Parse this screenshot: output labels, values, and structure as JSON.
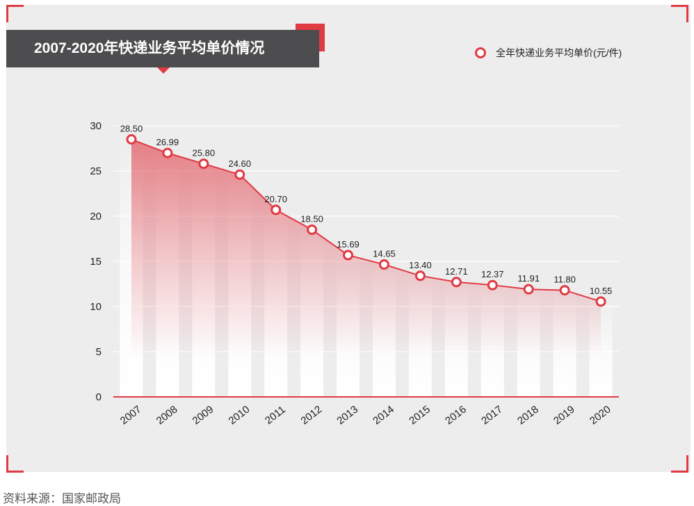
{
  "colors": {
    "accent": "#e03a43",
    "title_bg": "#4d4d4f",
    "panel_bg": "#ededee"
  },
  "source": "资料来源：国家邮政局",
  "chart_data": {
    "type": "area",
    "title": "2007-2020年快递业务平均单价情况",
    "legend": {
      "label": "全年快递业务平均单价(元/件)",
      "position": "top-right"
    },
    "categories": [
      "2007",
      "2008",
      "2009",
      "2010",
      "2011",
      "2012",
      "2013",
      "2014",
      "2015",
      "2016",
      "2017",
      "2018",
      "2019",
      "2020"
    ],
    "series": [
      {
        "name": "全年快递业务平均单价(元/件)",
        "values": [
          28.5,
          26.99,
          25.8,
          24.6,
          20.7,
          18.5,
          15.69,
          14.65,
          13.4,
          12.71,
          12.37,
          11.91,
          11.8,
          10.55
        ]
      }
    ],
    "value_labels": [
      "28.50",
      "26.99",
      "25.80",
      "24.60",
      "20.70",
      "18.50",
      "15.69",
      "14.65",
      "13.40",
      "12.71",
      "12.37",
      "11.91",
      "11.80",
      "10.55"
    ],
    "yticks": [
      "0",
      "5",
      "10",
      "15",
      "20",
      "25",
      "30"
    ],
    "ylim": [
      0,
      30
    ],
    "grid": true,
    "xlabel": "",
    "ylabel": ""
  }
}
